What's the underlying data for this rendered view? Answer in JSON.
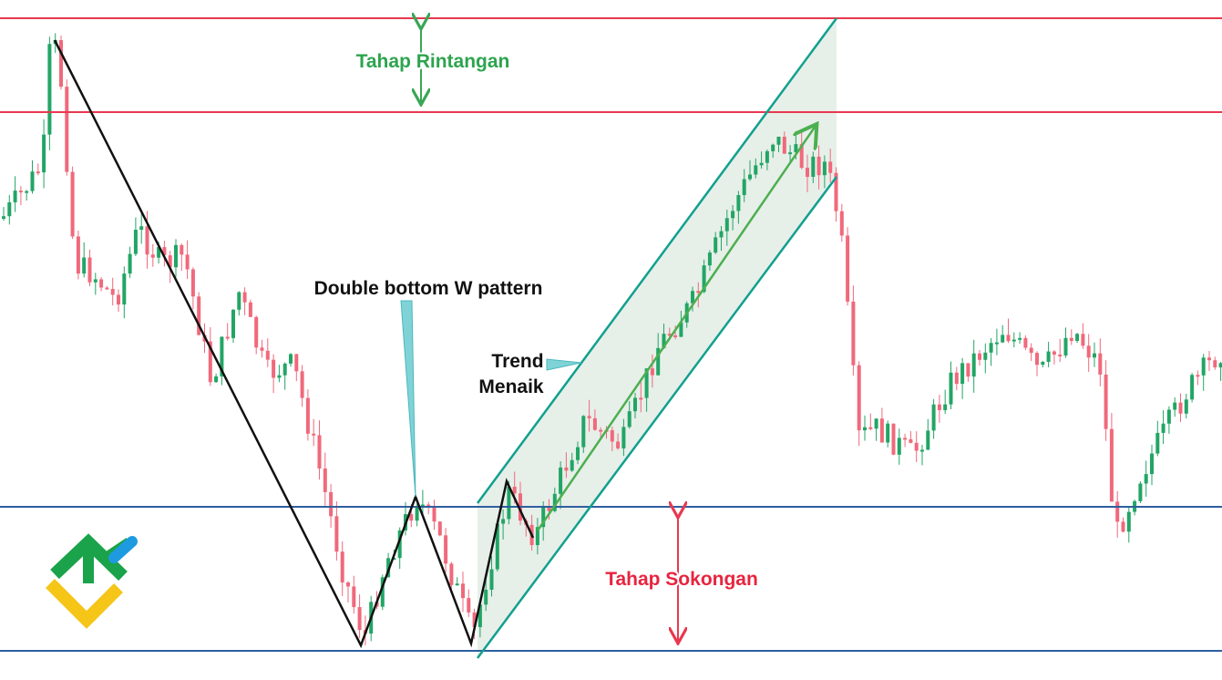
{
  "annotations": {
    "resistance": "Tahap Rintangan",
    "pattern": "Double bottom W pattern",
    "trend": [
      "Trend",
      "Menaik"
    ],
    "support": "Tahap Sokongan"
  }
}
